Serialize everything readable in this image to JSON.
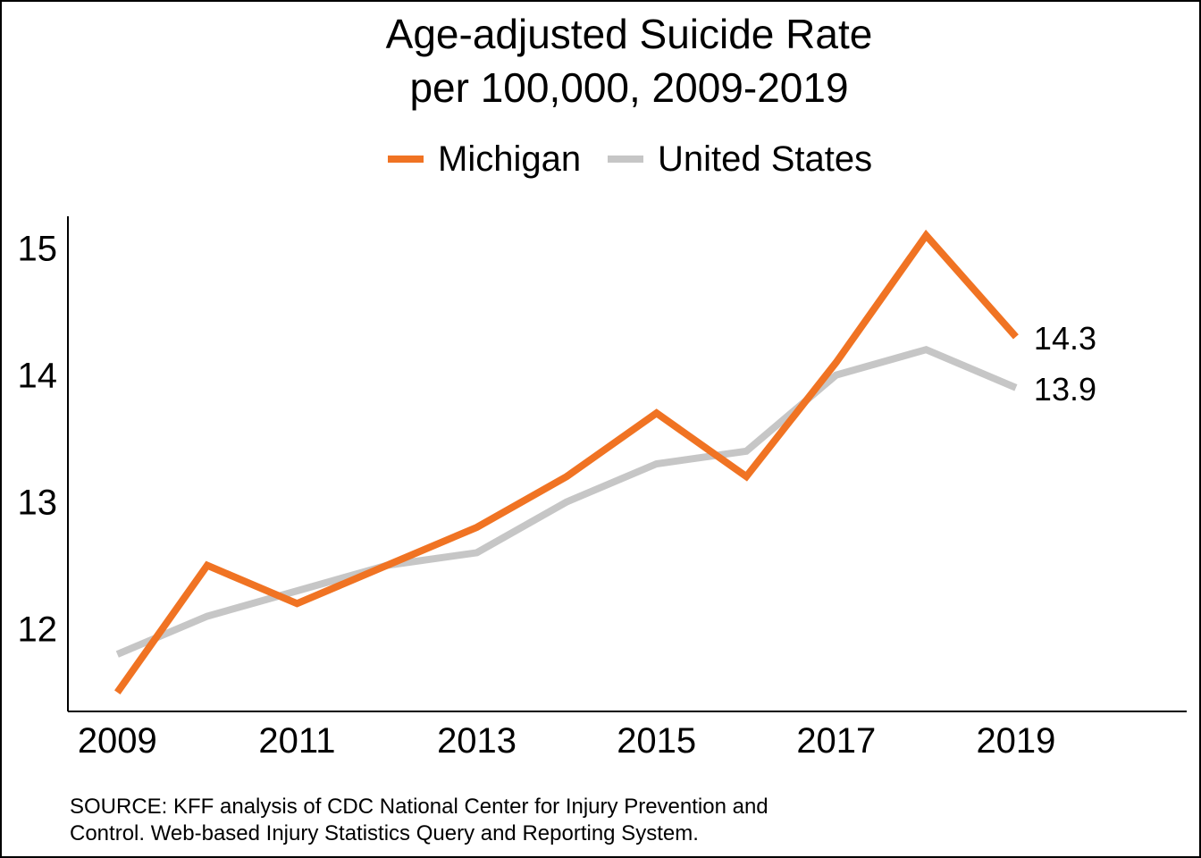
{
  "chart_data": {
    "type": "line",
    "title": "Age-adjusted Suicide Rate per 100,000, 2009-2019",
    "title_lines": [
      "Age-adjusted Suicide Rate",
      "per 100,000, 2009-2019"
    ],
    "x": [
      2009,
      2010,
      2011,
      2012,
      2013,
      2014,
      2015,
      2016,
      2017,
      2018,
      2019
    ],
    "x_ticks": [
      "2009",
      "2011",
      "2013",
      "2015",
      "2017",
      "2019"
    ],
    "y_ticks": [
      "12",
      "13",
      "14",
      "15"
    ],
    "ylim": [
      11.35,
      15.25
    ],
    "xlim": [
      2008.45,
      2020.9
    ],
    "grid": false,
    "legend_position": "top-center",
    "series": [
      {
        "name": "Michigan",
        "color": "#F07323",
        "values": [
          11.5,
          12.5,
          12.2,
          12.5,
          12.8,
          13.2,
          13.7,
          13.2,
          14.1,
          15.1,
          14.3
        ],
        "end_label": "14.3"
      },
      {
        "name": "United States",
        "color": "#C6C6C6",
        "values": [
          11.8,
          12.1,
          12.3,
          12.5,
          12.6,
          13.0,
          13.3,
          13.4,
          14.0,
          14.2,
          13.9
        ],
        "end_label": "13.9"
      }
    ],
    "source": "SOURCE: KFF analysis of CDC National Center for Injury Prevention and\nControl. Web-based Injury Statistics Query and Reporting System."
  }
}
